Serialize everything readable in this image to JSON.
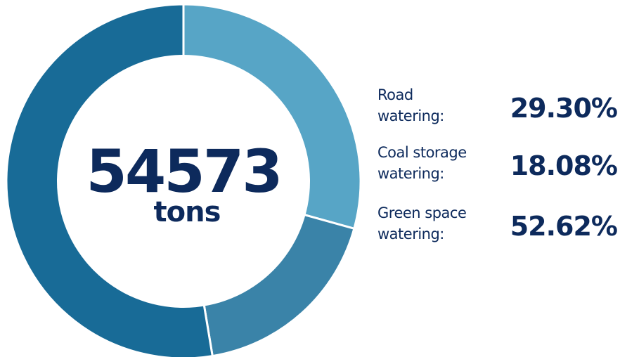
{
  "chart_data": {
    "type": "pie",
    "variant": "donut",
    "center_value": "54573",
    "center_unit": "tons",
    "slices": [
      {
        "label_line1": "Road",
        "label_line2": "watering:",
        "value_text": "29.30%",
        "value": 29.3,
        "color": "#57a5c6"
      },
      {
        "label_line1": "Coal storage",
        "label_line2": "watering:",
        "value_text": "18.08%",
        "value": 18.08,
        "color": "#3a83a8"
      },
      {
        "label_line1": "Green space",
        "label_line2": "watering:",
        "value_text": "52.62%",
        "value": 52.62,
        "color": "#186b97"
      }
    ],
    "start": "12 o'clock",
    "direction": "clockwise",
    "legend_position": "right"
  },
  "colors": {
    "text": "#0d2a5c",
    "center_fill": "#ffffff",
    "separator": "#ffffff"
  }
}
